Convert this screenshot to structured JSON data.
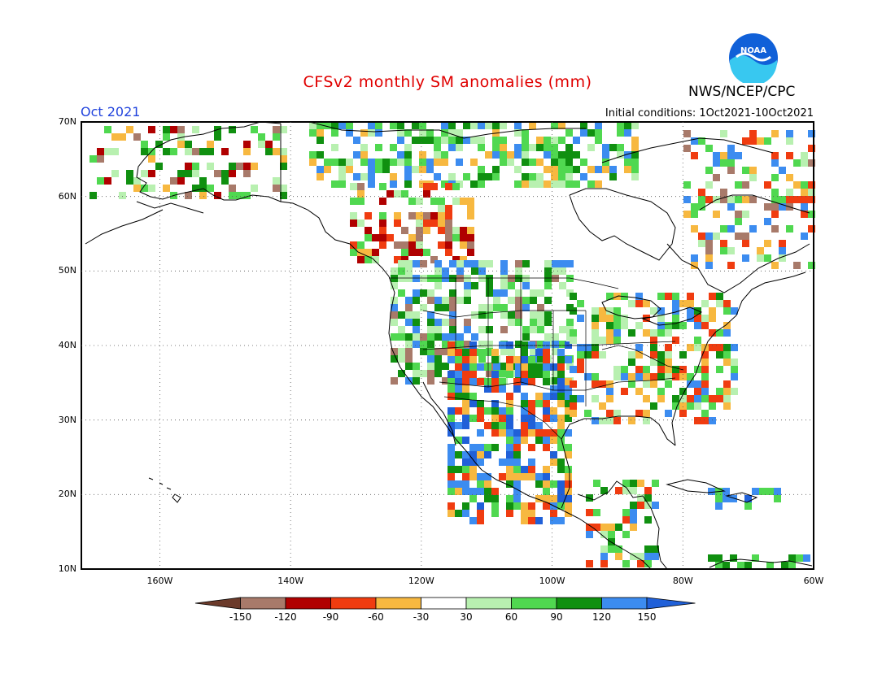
{
  "header": {
    "title": "CFSv2 monthly SM anomalies (mm)",
    "month": "Oct 2021",
    "initial_conditions": "Initial conditions: 1Oct2021-10Oct2021",
    "agency": "NWS/NCEP/CPC",
    "logo_text": "NOAA"
  },
  "map": {
    "lon_range": [
      -172,
      -60
    ],
    "lat_range": [
      10,
      70
    ],
    "lat_labels": [
      "70N",
      "60N",
      "50N",
      "40N",
      "30N",
      "20N",
      "10N"
    ],
    "lon_labels": [
      "160W",
      "140W",
      "120W",
      "100W",
      "80W",
      "60W"
    ],
    "grid": "dotted"
  },
  "colorbar": {
    "labels": [
      "-150",
      "-120",
      "-90",
      "-60",
      "-30",
      "30",
      "60",
      "90",
      "120",
      "150"
    ],
    "colors": [
      "#6b3a2a",
      "#a87a6a",
      "#b00000",
      "#f03c10",
      "#f7b840",
      "#ffffff",
      "#b8f0b0",
      "#50d850",
      "#109010",
      "#3c8cf0",
      "#2060d8"
    ]
  },
  "colors": {
    "title": "#e00000",
    "month": "#2244dd"
  }
}
